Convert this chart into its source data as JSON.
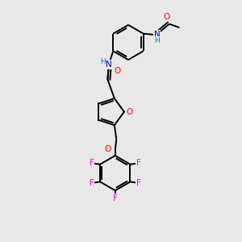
{
  "bg_color": "#e8e8e8",
  "atom_colors": {
    "O": "#ff0000",
    "N": "#0000cd",
    "F": "#ff00ff",
    "C": "#000000",
    "H": "#008080"
  },
  "lw": 1.4
}
